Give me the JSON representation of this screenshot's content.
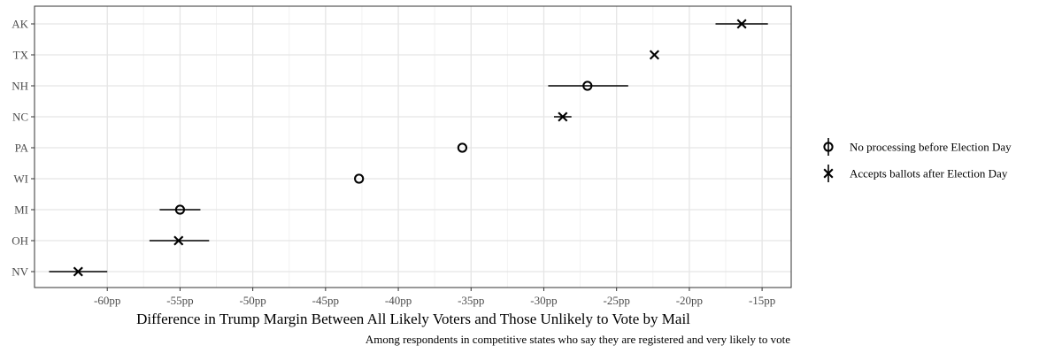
{
  "chart_data": {
    "type": "scatter",
    "xlabel": "Difference in Trump Margin Between All Likely Voters and Those Unlikely to Vote by Mail",
    "caption": "Among respondents in competitive states who say they are registered and very likely to vote",
    "xlim": [
      -65,
      -13
    ],
    "x_ticks": [
      {
        "value": -60,
        "label": "-60pp"
      },
      {
        "value": -55,
        "label": "-55pp"
      },
      {
        "value": -50,
        "label": "-50pp"
      },
      {
        "value": -45,
        "label": "-45pp"
      },
      {
        "value": -40,
        "label": "-40pp"
      },
      {
        "value": -35,
        "label": "-35pp"
      },
      {
        "value": -30,
        "label": "-30pp"
      },
      {
        "value": -25,
        "label": "-25pp"
      },
      {
        "value": -20,
        "label": "-20pp"
      },
      {
        "value": -15,
        "label": "-15pp"
      }
    ],
    "categories": [
      "AK",
      "TX",
      "NH",
      "NC",
      "PA",
      "WI",
      "MI",
      "OH",
      "NV"
    ],
    "series": [
      {
        "name": "No processing before Election Day",
        "shape": "circle",
        "points": [
          {
            "state": "NH",
            "value": -27.0,
            "low": -29.7,
            "high": -24.2
          },
          {
            "state": "PA",
            "value": -35.6,
            "low": -35.6,
            "high": -35.6
          },
          {
            "state": "WI",
            "value": -42.7,
            "low": -42.7,
            "high": -42.7
          },
          {
            "state": "MI",
            "value": -55.0,
            "low": -56.4,
            "high": -53.6
          }
        ]
      },
      {
        "name": "Accepts ballots after Election Day",
        "shape": "cross",
        "points": [
          {
            "state": "AK",
            "value": -16.4,
            "low": -18.2,
            "high": -14.6
          },
          {
            "state": "TX",
            "value": -22.4,
            "low": -22.4,
            "high": -22.4
          },
          {
            "state": "NC",
            "value": -28.7,
            "low": -29.3,
            "high": -28.1
          },
          {
            "state": "OH",
            "value": -55.1,
            "low": -57.1,
            "high": -53.0
          },
          {
            "state": "NV",
            "value": -62.0,
            "low": -64.0,
            "high": -60.0
          }
        ]
      }
    ],
    "grid": true,
    "legend_position": "right"
  }
}
